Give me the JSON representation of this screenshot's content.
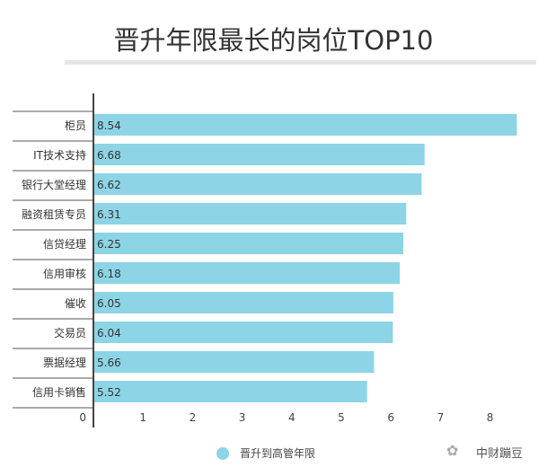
{
  "chart_data": {
    "type": "bar",
    "orientation": "horizontal",
    "title": "晋升年限最长的岗位TOP10",
    "categories": [
      "柜员",
      "IT技术支持",
      "银行大堂经理",
      "融资租赁专员",
      "信贷经理",
      "信用审核",
      "催收",
      "交易员",
      "票据经理",
      "信用卡销售"
    ],
    "series": [
      {
        "name": "晋升到高管年限",
        "values": [
          8.54,
          6.68,
          6.62,
          6.31,
          6.25,
          6.18,
          6.05,
          6.04,
          5.66,
          5.52
        ]
      }
    ],
    "xticks": [
      0,
      1,
      2,
      3,
      4,
      5,
      6,
      7,
      8
    ],
    "xlim": [
      0,
      8.8
    ],
    "grid": false,
    "legend": "bottom",
    "color": "#8dd4e6"
  },
  "watermark": "中财蹦豆"
}
